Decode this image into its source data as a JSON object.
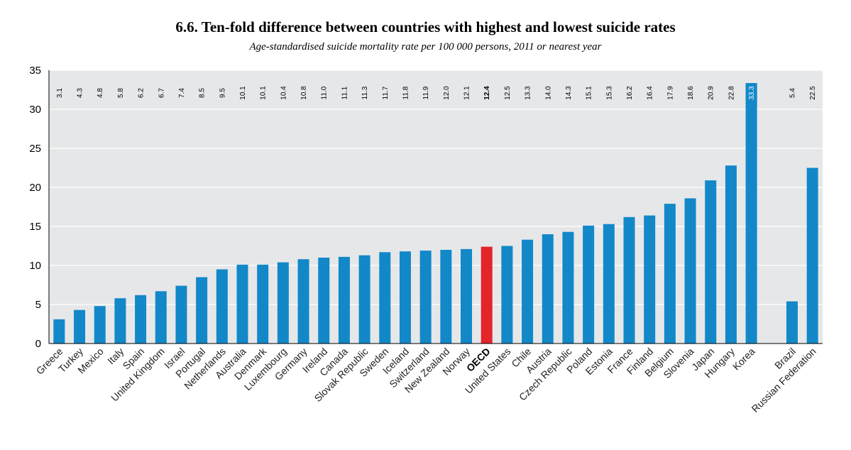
{
  "chart_data": {
    "type": "bar",
    "title": "6.6.  Ten-fold difference between countries with highest and lowest suicide rates",
    "subtitle": "Age-standardised suicide mortality rate per 100 000 persons, 2011 or nearest year",
    "xlabel": "",
    "ylabel": "",
    "ylim": [
      0,
      35
    ],
    "yticks": [
      "0",
      "5",
      "10",
      "15",
      "20",
      "25",
      "30",
      "35"
    ],
    "grid": true,
    "categories": [
      "Greece",
      "Turkey",
      "Mexico",
      "Italy",
      "Spain",
      "United Kingdom",
      "Israel",
      "Portugal",
      "Netherlands",
      "Australia",
      "Denmark",
      "Luxembourg",
      "Germany",
      "Ireland",
      "Canada",
      "Slovak Republic",
      "Sweden",
      "Iceland",
      "Switzerland",
      "New Zealand",
      "Norway",
      "OECD",
      "United States",
      "Chile",
      "Austria",
      "Czech Republic",
      "Poland",
      "Estonia",
      "France",
      "Finland",
      "Belgium",
      "Slovenia",
      "Japan",
      "Hungary",
      "Korea",
      "",
      "Brazil",
      "Russian Federation"
    ],
    "values": [
      3.1,
      4.3,
      4.8,
      5.8,
      6.2,
      6.7,
      7.4,
      8.5,
      9.5,
      10.1,
      10.1,
      10.4,
      10.8,
      11.0,
      11.1,
      11.3,
      11.7,
      11.8,
      11.9,
      12.0,
      12.1,
      12.4,
      12.5,
      13.3,
      14.0,
      14.3,
      15.1,
      15.3,
      16.2,
      16.4,
      17.9,
      18.6,
      20.9,
      22.8,
      33.3,
      null,
      5.4,
      22.5
    ],
    "value_labels": [
      "3.1",
      "4.3",
      "4.8",
      "5.8",
      "6.2",
      "6.7",
      "7.4",
      "8.5",
      "9.5",
      "10.1",
      "10.1",
      "10.4",
      "10.8",
      "11.0",
      "11.1",
      "11.3",
      "11.7",
      "11.8",
      "11.9",
      "12.0",
      "12.1",
      "12.4",
      "12.5",
      "13.3",
      "14.0",
      "14.3",
      "15.1",
      "15.3",
      "16.2",
      "16.4",
      "17.9",
      "18.6",
      "20.9",
      "22.8",
      "33.3",
      "",
      "5.4",
      "22.5"
    ],
    "highlight_category": "OECD",
    "colors": {
      "bar": "#1288c9",
      "highlight": "#e3242b",
      "plot_bg": "#e6e7e9",
      "grid": "#ffffff"
    }
  }
}
